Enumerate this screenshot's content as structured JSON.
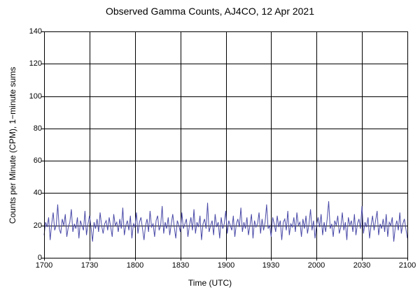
{
  "chart_data": {
    "type": "line",
    "title": "Observed Gamma Counts, AJ4CO, 12 Apr 2021",
    "xlabel": "Time (UTC)",
    "ylabel": "Counts per Minute (CPM), 1−minute sums",
    "x_tick_labels": [
      "1700",
      "1730",
      "1800",
      "1830",
      "1900",
      "1930",
      "2000",
      "2030",
      "2100"
    ],
    "y_ticks": [
      0,
      20,
      40,
      60,
      80,
      100,
      120,
      140
    ],
    "ylim": [
      0,
      140
    ],
    "x_range_minutes": [
      0,
      240
    ],
    "grid": true,
    "legend": "none",
    "line_color": "#4a4aa8",
    "values": [
      14,
      22,
      19,
      25,
      11,
      21,
      28,
      17,
      20,
      33,
      18,
      15,
      24,
      20,
      27,
      13,
      19,
      22,
      30,
      16,
      21,
      18,
      25,
      12,
      23,
      20,
      17,
      29,
      14,
      21,
      26,
      19,
      10,
      22,
      18,
      24,
      16,
      28,
      20,
      15,
      21,
      23,
      17,
      25,
      19,
      13,
      27,
      20,
      22,
      16,
      24,
      18,
      31,
      14,
      20,
      23,
      17,
      26,
      12,
      21,
      19,
      28,
      15,
      22,
      25,
      18,
      11,
      20,
      24,
      16,
      29,
      19,
      21,
      13,
      23,
      26,
      17,
      20,
      32,
      15,
      22,
      18,
      25,
      14,
      21,
      27,
      19,
      12,
      23,
      20,
      16,
      28,
      18,
      21,
      24,
      13,
      20,
      25,
      17,
      30,
      15,
      22,
      19,
      26,
      11,
      21,
      24,
      18,
      34,
      16,
      20,
      23,
      14,
      27,
      19,
      22,
      12,
      25,
      18,
      21,
      29,
      15,
      23,
      20,
      17,
      26,
      13,
      21,
      24,
      19,
      31,
      16,
      22,
      18,
      25,
      14,
      20,
      27,
      12,
      23,
      19,
      21,
      28,
      15,
      24,
      17,
      22,
      33,
      18,
      20,
      13,
      25,
      21,
      16,
      26,
      19,
      23,
      11,
      22,
      24,
      17,
      29,
      14,
      21,
      19,
      25,
      16,
      28,
      20,
      22,
      13,
      24,
      18,
      26,
      15,
      21,
      30,
      17,
      23,
      12,
      20,
      25,
      19,
      27,
      14,
      22,
      16,
      24,
      35,
      18,
      21,
      13,
      23,
      20,
      26,
      15,
      19,
      28,
      17,
      22,
      11,
      25,
      20,
      23,
      16,
      27,
      14,
      21,
      24,
      18,
      32,
      15,
      22,
      19,
      25,
      12,
      20,
      26,
      17,
      23,
      29,
      14,
      21,
      18,
      24,
      16,
      27,
      13,
      22,
      20,
      25,
      10,
      19,
      23,
      17,
      28,
      15,
      21,
      24,
      18,
      12
    ]
  }
}
